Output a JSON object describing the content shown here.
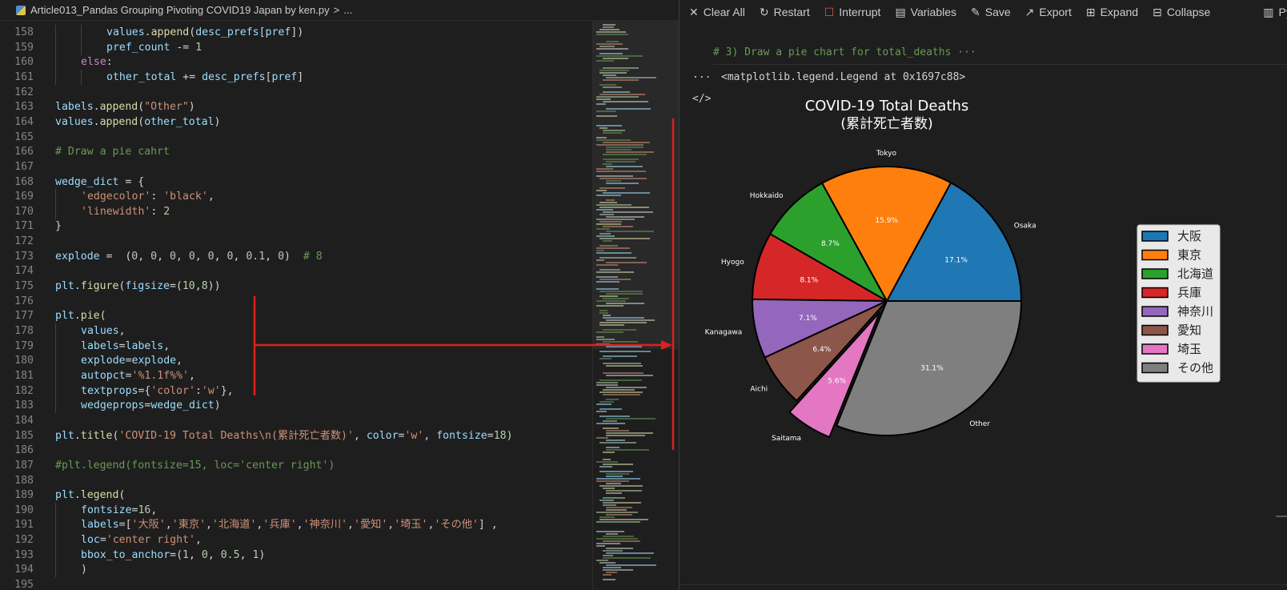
{
  "breadcrumb": {
    "file": "Article013_Pandas Grouping Pivoting COVID19 Japan by ken.py",
    "separator": ">",
    "more": "..."
  },
  "code_lines": [
    {
      "n": "158",
      "indent": 2,
      "tokens": [
        [
          "values",
          "v"
        ],
        [
          ".",
          "p"
        ],
        [
          "append",
          "f"
        ],
        [
          "(",
          "p"
        ],
        [
          "desc_prefs",
          "v"
        ],
        [
          "[",
          "p"
        ],
        [
          "pref",
          "v"
        ],
        [
          "])",
          "p"
        ]
      ]
    },
    {
      "n": "159",
      "indent": 2,
      "tokens": [
        [
          "pref_count",
          "v"
        ],
        [
          " -= ",
          "p"
        ],
        [
          "1",
          "n"
        ]
      ]
    },
    {
      "n": "160",
      "indent": 1,
      "tokens": [
        [
          "else",
          "k"
        ],
        [
          ":",
          "p"
        ]
      ]
    },
    {
      "n": "161",
      "indent": 2,
      "tokens": [
        [
          "other_total",
          "v"
        ],
        [
          " += ",
          "p"
        ],
        [
          "desc_prefs",
          "v"
        ],
        [
          "[",
          "p"
        ],
        [
          "pref",
          "v"
        ],
        [
          "]",
          "p"
        ]
      ]
    },
    {
      "n": "162",
      "indent": 0,
      "tokens": []
    },
    {
      "n": "163",
      "indent": 0,
      "tokens": [
        [
          "labels",
          "v"
        ],
        [
          ".",
          "p"
        ],
        [
          "append",
          "f"
        ],
        [
          "(",
          "p"
        ],
        [
          "\"Other\"",
          "s"
        ],
        [
          ")",
          "p"
        ]
      ]
    },
    {
      "n": "164",
      "indent": 0,
      "tokens": [
        [
          "values",
          "v"
        ],
        [
          ".",
          "p"
        ],
        [
          "append",
          "f"
        ],
        [
          "(",
          "p"
        ],
        [
          "other_total",
          "v"
        ],
        [
          ")",
          "p"
        ]
      ]
    },
    {
      "n": "165",
      "indent": 0,
      "tokens": []
    },
    {
      "n": "166",
      "indent": 0,
      "tokens": [
        [
          "# Draw a pie cahrt",
          "c"
        ]
      ]
    },
    {
      "n": "167",
      "indent": 0,
      "tokens": []
    },
    {
      "n": "168",
      "indent": 0,
      "tokens": [
        [
          "wedge_dict",
          "v"
        ],
        [
          " = {",
          "p"
        ]
      ]
    },
    {
      "n": "169",
      "indent": 1,
      "tokens": [
        [
          "'edgecolor'",
          "s"
        ],
        [
          ": ",
          "p"
        ],
        [
          "'black'",
          "s"
        ],
        [
          ",",
          "p"
        ]
      ]
    },
    {
      "n": "170",
      "indent": 1,
      "tokens": [
        [
          "'linewidth'",
          "s"
        ],
        [
          ": ",
          "p"
        ],
        [
          "2",
          "n"
        ]
      ]
    },
    {
      "n": "171",
      "indent": 0,
      "tokens": [
        [
          "}",
          "p"
        ]
      ]
    },
    {
      "n": "172",
      "indent": 0,
      "tokens": []
    },
    {
      "n": "173",
      "indent": 0,
      "tokens": [
        [
          "explode",
          "v"
        ],
        [
          " =  (",
          "p"
        ],
        [
          "0",
          "n"
        ],
        [
          ", ",
          "p"
        ],
        [
          "0",
          "n"
        ],
        [
          ", ",
          "p"
        ],
        [
          "0",
          "n"
        ],
        [
          ", ",
          "p"
        ],
        [
          "0",
          "n"
        ],
        [
          ", ",
          "p"
        ],
        [
          "0",
          "n"
        ],
        [
          ", ",
          "p"
        ],
        [
          "0",
          "n"
        ],
        [
          ", ",
          "p"
        ],
        [
          "0.1",
          "n"
        ],
        [
          ", ",
          "p"
        ],
        [
          "0",
          "n"
        ],
        [
          ")  ",
          "p"
        ],
        [
          "# 8",
          "c"
        ]
      ]
    },
    {
      "n": "174",
      "indent": 0,
      "tokens": []
    },
    {
      "n": "175",
      "indent": 0,
      "tokens": [
        [
          "plt",
          "v"
        ],
        [
          ".",
          "p"
        ],
        [
          "figure",
          "f"
        ],
        [
          "(",
          "p"
        ],
        [
          "figsize",
          "v"
        ],
        [
          "=(",
          "p"
        ],
        [
          "10",
          "n"
        ],
        [
          ",",
          "p"
        ],
        [
          "8",
          "n"
        ],
        [
          "))",
          "p"
        ]
      ]
    },
    {
      "n": "176",
      "indent": 0,
      "tokens": []
    },
    {
      "n": "177",
      "indent": 0,
      "tokens": [
        [
          "plt",
          "v"
        ],
        [
          ".",
          "p"
        ],
        [
          "pie",
          "f"
        ],
        [
          "(",
          "p"
        ]
      ]
    },
    {
      "n": "178",
      "indent": 1,
      "tokens": [
        [
          "values",
          "v"
        ],
        [
          ",",
          "p"
        ]
      ]
    },
    {
      "n": "179",
      "indent": 1,
      "tokens": [
        [
          "labels",
          "v"
        ],
        [
          "=",
          "p"
        ],
        [
          "labels",
          "v"
        ],
        [
          ",",
          "p"
        ]
      ]
    },
    {
      "n": "180",
      "indent": 1,
      "tokens": [
        [
          "explode",
          "v"
        ],
        [
          "=",
          "p"
        ],
        [
          "explode",
          "v"
        ],
        [
          ",",
          "p"
        ]
      ]
    },
    {
      "n": "181",
      "indent": 1,
      "tokens": [
        [
          "autopct",
          "v"
        ],
        [
          "=",
          "p"
        ],
        [
          "'%1.1f%%'",
          "s"
        ],
        [
          ",",
          "p"
        ]
      ]
    },
    {
      "n": "182",
      "indent": 1,
      "tokens": [
        [
          "textprops",
          "v"
        ],
        [
          "={",
          "p"
        ],
        [
          "'color'",
          "s"
        ],
        [
          ":",
          "p"
        ],
        [
          "'w'",
          "s"
        ],
        [
          "},",
          "p"
        ]
      ]
    },
    {
      "n": "183",
      "indent": 1,
      "tokens": [
        [
          "wedgeprops",
          "v"
        ],
        [
          "=",
          "p"
        ],
        [
          "wedge_dict",
          "v"
        ],
        [
          ")",
          "p"
        ]
      ]
    },
    {
      "n": "184",
      "indent": 0,
      "tokens": []
    },
    {
      "n": "185",
      "indent": 0,
      "tokens": [
        [
          "plt",
          "v"
        ],
        [
          ".",
          "p"
        ],
        [
          "title",
          "f"
        ],
        [
          "(",
          "p"
        ],
        [
          "'COVID-19 Total Deaths\\n(累計死亡者数)'",
          "s"
        ],
        [
          ", ",
          "p"
        ],
        [
          "color",
          "v"
        ],
        [
          "=",
          "p"
        ],
        [
          "'w'",
          "s"
        ],
        [
          ", ",
          "p"
        ],
        [
          "fontsize",
          "v"
        ],
        [
          "=",
          "p"
        ],
        [
          "18",
          "n"
        ],
        [
          ")",
          "p"
        ]
      ]
    },
    {
      "n": "186",
      "indent": 0,
      "tokens": []
    },
    {
      "n": "187",
      "indent": 0,
      "tokens": [
        [
          "#plt.legend(fontsize=15, loc='center right')",
          "c"
        ]
      ]
    },
    {
      "n": "188",
      "indent": 0,
      "tokens": []
    },
    {
      "n": "189",
      "indent": 0,
      "tokens": [
        [
          "plt",
          "v"
        ],
        [
          ".",
          "p"
        ],
        [
          "legend",
          "f"
        ],
        [
          "(",
          "p"
        ]
      ]
    },
    {
      "n": "190",
      "indent": 1,
      "tokens": [
        [
          "fontsize",
          "v"
        ],
        [
          "=",
          "p"
        ],
        [
          "16",
          "n"
        ],
        [
          ",",
          "p"
        ]
      ]
    },
    {
      "n": "191",
      "indent": 1,
      "tokens": [
        [
          "labels",
          "v"
        ],
        [
          "=[",
          "p"
        ],
        [
          "'大阪'",
          "s"
        ],
        [
          ",",
          "p"
        ],
        [
          "'東京'",
          "s"
        ],
        [
          ",",
          "p"
        ],
        [
          "'北海道'",
          "s"
        ],
        [
          ",",
          "p"
        ],
        [
          "'兵庫'",
          "s"
        ],
        [
          ",",
          "p"
        ],
        [
          "'神奈川'",
          "s"
        ],
        [
          ",",
          "p"
        ],
        [
          "'愛知'",
          "s"
        ],
        [
          ",",
          "p"
        ],
        [
          "'埼玉'",
          "s"
        ],
        [
          ",",
          "p"
        ],
        [
          "'その他'",
          "s"
        ],
        [
          "] ,",
          "p"
        ]
      ]
    },
    {
      "n": "192",
      "indent": 1,
      "tokens": [
        [
          "loc",
          "v"
        ],
        [
          "=",
          "p"
        ],
        [
          "'center right'",
          "s"
        ],
        [
          ",",
          "p"
        ]
      ]
    },
    {
      "n": "193",
      "indent": 1,
      "tokens": [
        [
          "bbox_to_anchor",
          "v"
        ],
        [
          "=(",
          "p"
        ],
        [
          "1",
          "n"
        ],
        [
          ", ",
          "p"
        ],
        [
          "0",
          "n"
        ],
        [
          ", ",
          "p"
        ],
        [
          "0.5",
          "n"
        ],
        [
          ", ",
          "p"
        ],
        [
          "1",
          "n"
        ],
        [
          ")",
          "p"
        ]
      ]
    },
    {
      "n": "194",
      "indent": 1,
      "tokens": [
        [
          ")",
          "p"
        ]
      ]
    },
    {
      "n": "195",
      "indent": 0,
      "tokens": []
    }
  ],
  "syntax_colors": {
    "v": "#9cdcfe",
    "f": "#dcdcaa",
    "k": "#c586c0",
    "s": "#ce9178",
    "n": "#b5cea8",
    "c": "#6a9955",
    "p": "#d4d4d4"
  },
  "toolbar": {
    "clear_all": "Clear All",
    "restart": "Restart",
    "interrupt": "Interrupt",
    "variables": "Variables",
    "save": "Save",
    "export": "Export",
    "expand": "Expand",
    "collapse": "Collapse",
    "kernel": "Pytho"
  },
  "cell": {
    "input_comment": "# 3) Draw a pie chart for total_deaths ···",
    "output_text": "<matplotlib.legend.Legend at 0x1697c88>",
    "ellipsis_icon": "...",
    "code_icon": "</>"
  },
  "chart_data": {
    "type": "pie",
    "title": "COVID-19 Total Deaths",
    "subtitle": "(累計死亡者数)",
    "slices": [
      {
        "label": "Osaka",
        "value": 17.1,
        "pct_label": "17.1%",
        "color": "#1f77b4",
        "explode": 0
      },
      {
        "label": "Tokyo",
        "value": 15.9,
        "pct_label": "15.9%",
        "color": "#ff7f0e",
        "explode": 0
      },
      {
        "label": "Hokkaido",
        "value": 8.7,
        "pct_label": "8.7%",
        "color": "#2ca02c",
        "explode": 0
      },
      {
        "label": "Hyogo",
        "value": 8.1,
        "pct_label": "8.1%",
        "color": "#d62728",
        "explode": 0
      },
      {
        "label": "Kanagawa",
        "value": 7.1,
        "pct_label": "7.1%",
        "color": "#9467bd",
        "explode": 0
      },
      {
        "label": "Aichi",
        "value": 6.4,
        "pct_label": "6.4%",
        "color": "#8c564b",
        "explode": 0
      },
      {
        "label": "Saitama",
        "value": 5.6,
        "pct_label": "5.6%",
        "color": "#e377c2",
        "explode": 0.1
      },
      {
        "label": "Other",
        "value": 31.1,
        "pct_label": "31.1%",
        "color": "#7f7f7f",
        "explode": 0
      }
    ],
    "legend": {
      "placement": "center-right",
      "labels": [
        "大阪",
        "東京",
        "北海道",
        "兵庫",
        "神奈川",
        "愛知",
        "埼玉",
        "その他"
      ]
    },
    "start_angle_deg": 0,
    "direction": "counterclockwise"
  },
  "annotation": {
    "color": "#e31e1e"
  }
}
